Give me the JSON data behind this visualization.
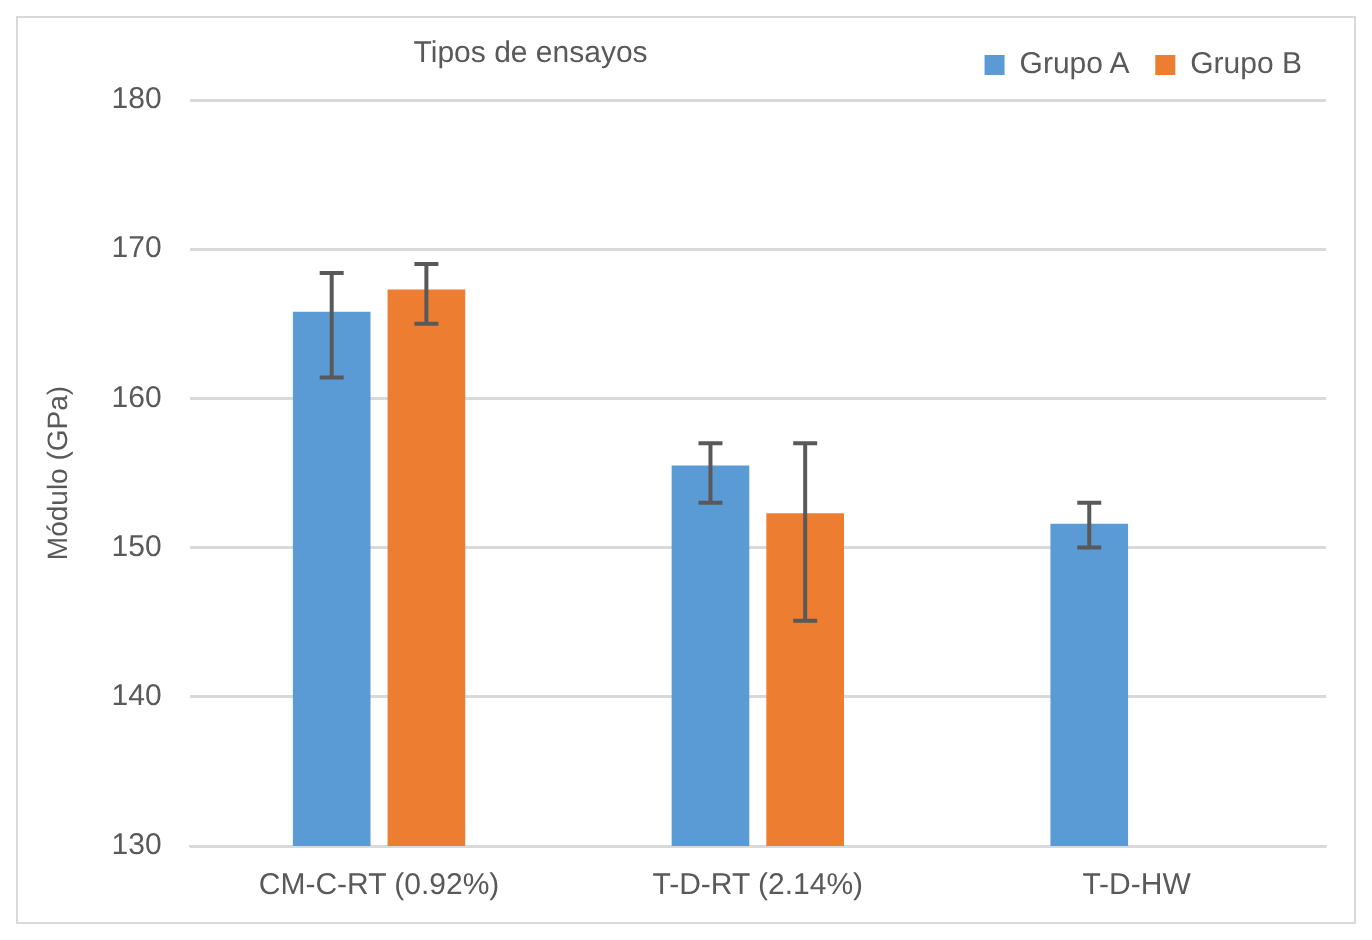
{
  "chart_data": {
    "type": "bar",
    "title": "Tipos de ensayos",
    "ylabel": "Módulo (GPa)",
    "categories": [
      "CM-C-RT (0.92%)",
      "T-D-RT (2.14%)",
      "T-D-HW"
    ],
    "series": [
      {
        "name": "Grupo A",
        "color": "#5b9bd5",
        "values": [
          165.8,
          155.5,
          151.6
        ],
        "errors": [
          [
            161.4,
            168.4
          ],
          [
            153.0,
            157.0
          ],
          [
            150.0,
            153.0
          ]
        ]
      },
      {
        "name": "Grupo B",
        "color": "#ed7d31",
        "values": [
          167.3,
          152.3,
          null
        ],
        "errors": [
          [
            165.0,
            169.0
          ],
          [
            145.1,
            157.0
          ],
          null
        ]
      }
    ],
    "ylim": [
      130,
      180
    ],
    "yticks": [
      130,
      140,
      150,
      160,
      170,
      180
    ],
    "grid": "y",
    "legend": "top right"
  }
}
